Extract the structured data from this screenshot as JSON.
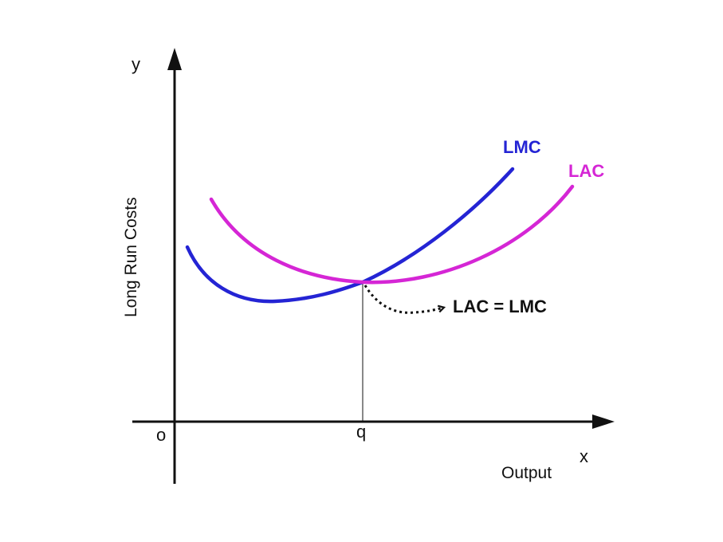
{
  "axes": {
    "y_letter": "y",
    "x_letter": "x",
    "origin": "o",
    "y_title": "Long Run Costs",
    "x_title": "Output",
    "q_tick": "q"
  },
  "curves": {
    "lmc": {
      "label": "LMC",
      "color": "#2424d4"
    },
    "lac": {
      "label": "LAC",
      "color": "#d526d5"
    }
  },
  "annotation": {
    "equality": "LAC = LMC"
  },
  "colors": {
    "axis": "#111111",
    "pointer": "#111111"
  }
}
